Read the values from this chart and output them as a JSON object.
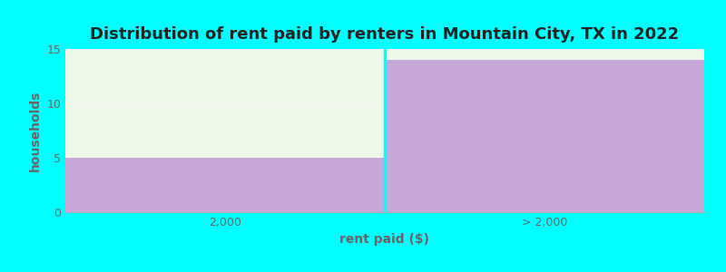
{
  "title": "Distribution of rent paid by renters in Mountain City, TX in 2022",
  "xlabel": "rent paid ($)",
  "ylabel": "households",
  "categories": [
    "2,000",
    "> 2,000"
  ],
  "values": [
    5,
    14
  ],
  "ylim": [
    0,
    15
  ],
  "yticks": [
    0,
    5,
    10,
    15
  ],
  "bar_color": "#c8a8d8",
  "plot_bg_color": "#eef8e8",
  "fig_bg_color": "#00ffff",
  "title_fontsize": 13,
  "axis_label_fontsize": 10,
  "tick_fontsize": 9,
  "grid_color": "#e0e0e0",
  "text_color": "#666666",
  "divider_color": "#00ffff",
  "top_strip_color": "#f8f8f8"
}
